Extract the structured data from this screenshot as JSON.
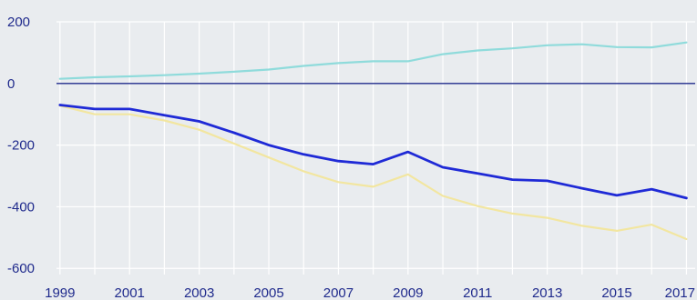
{
  "chart_data": {
    "type": "line",
    "title": "",
    "xlabel": "",
    "ylabel": "",
    "x": [
      1999,
      2000,
      2001,
      2002,
      2003,
      2004,
      2005,
      2006,
      2007,
      2008,
      2009,
      2010,
      2011,
      2012,
      2013,
      2014,
      2015,
      2016,
      2017
    ],
    "x_tick_labels": [
      "1999",
      "2001",
      "2003",
      "2005",
      "2007",
      "2009",
      "2011",
      "2013",
      "2015",
      "2017"
    ],
    "x_tick_values": [
      1999,
      2001,
      2003,
      2005,
      2007,
      2009,
      2011,
      2013,
      2015,
      2017
    ],
    "y_tick_labels": [
      "200",
      "0",
      "-200",
      "-400",
      "-600"
    ],
    "y_tick_values": [
      200,
      0,
      -200,
      -400,
      -600
    ],
    "xlim": [
      1998.9,
      2017.25
    ],
    "ylim": [
      -620,
      200
    ],
    "grid": true,
    "legend": "none",
    "colors": {
      "background": "#e9ecef",
      "grid": "#ffffff",
      "zero_line": "#1f2a8c",
      "axis_text": "#1f2a8c",
      "series": [
        "#8fdbdb",
        "#1f2ad6",
        "#f2e6a0"
      ]
    },
    "series": [
      {
        "values": [
          15,
          20,
          23,
          27,
          32,
          38,
          45,
          57,
          66,
          72,
          72,
          95,
          107,
          114,
          124,
          127,
          118,
          117,
          133
        ]
      },
      {
        "values": [
          -70,
          -83,
          -83,
          -103,
          -123,
          -160,
          -200,
          -230,
          -252,
          -262,
          -222,
          -272,
          -292,
          -312,
          -316,
          -340,
          -363,
          -343,
          -372
        ]
      },
      {
        "values": [
          -72,
          -100,
          -100,
          -120,
          -150,
          -195,
          -240,
          -285,
          -320,
          -335,
          -295,
          -365,
          -398,
          -422,
          -436,
          -462,
          -478,
          -458,
          -505
        ]
      }
    ]
  }
}
